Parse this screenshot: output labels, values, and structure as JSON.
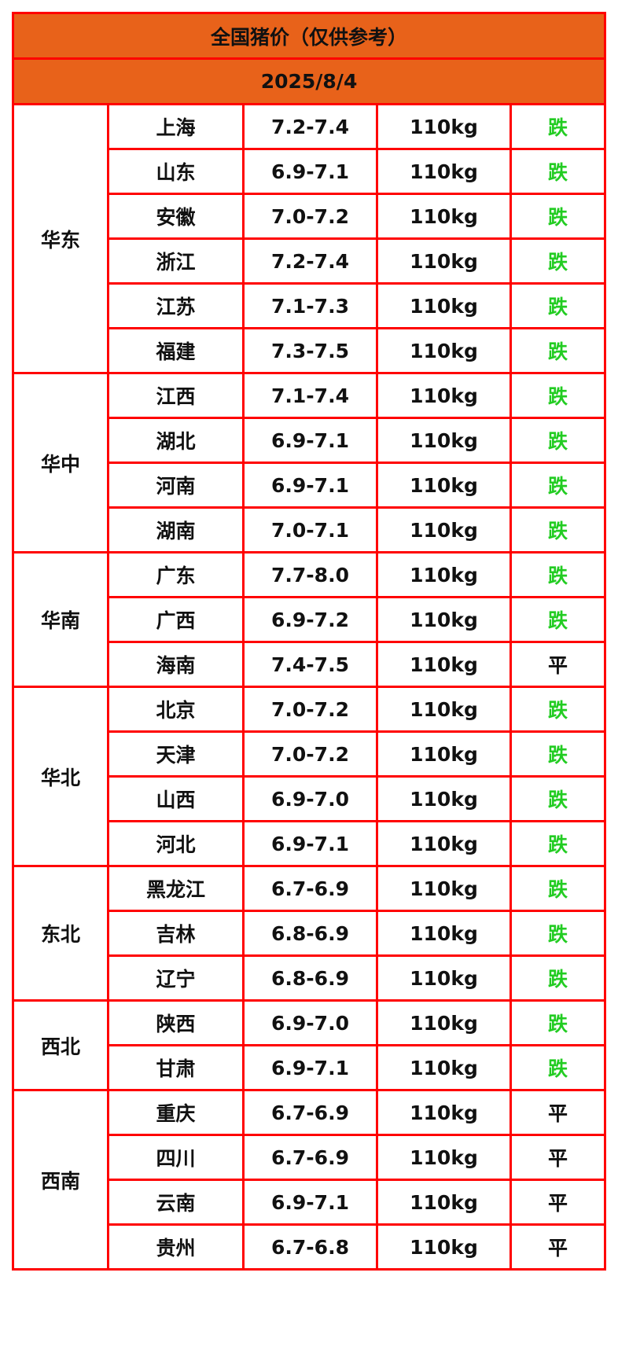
{
  "title": "全国猪价（仅供参考）",
  "date": "2025/8/4",
  "colors": {
    "header_bg": "#e8621a",
    "border": "#ff0000",
    "down": "#22cc22",
    "flat": "#111111"
  },
  "regions": [
    {
      "name": "华东",
      "rows": [
        {
          "province": "上海",
          "price": "7.2-7.4",
          "weight": "110kg",
          "trend": "跌"
        },
        {
          "province": "山东",
          "price": "6.9-7.1",
          "weight": "110kg",
          "trend": "跌"
        },
        {
          "province": "安徽",
          "price": "7.0-7.2",
          "weight": "110kg",
          "trend": "跌"
        },
        {
          "province": "浙江",
          "price": "7.2-7.4",
          "weight": "110kg",
          "trend": "跌"
        },
        {
          "province": "江苏",
          "price": "7.1-7.3",
          "weight": "110kg",
          "trend": "跌"
        },
        {
          "province": "福建",
          "price": "7.3-7.5",
          "weight": "110kg",
          "trend": "跌"
        }
      ]
    },
    {
      "name": "华中",
      "rows": [
        {
          "province": "江西",
          "price": "7.1-7.4",
          "weight": "110kg",
          "trend": "跌"
        },
        {
          "province": "湖北",
          "price": "6.9-7.1",
          "weight": "110kg",
          "trend": "跌"
        },
        {
          "province": "河南",
          "price": "6.9-7.1",
          "weight": "110kg",
          "trend": "跌"
        },
        {
          "province": "湖南",
          "price": "7.0-7.1",
          "weight": "110kg",
          "trend": "跌"
        }
      ]
    },
    {
      "name": "华南",
      "rows": [
        {
          "province": "广东",
          "price": "7.7-8.0",
          "weight": "110kg",
          "trend": "跌"
        },
        {
          "province": "广西",
          "price": "6.9-7.2",
          "weight": "110kg",
          "trend": "跌"
        },
        {
          "province": "海南",
          "price": "7.4-7.5",
          "weight": "110kg",
          "trend": "平"
        }
      ]
    },
    {
      "name": "华北",
      "rows": [
        {
          "province": "北京",
          "price": "7.0-7.2",
          "weight": "110kg",
          "trend": "跌"
        },
        {
          "province": "天津",
          "price": "7.0-7.2",
          "weight": "110kg",
          "trend": "跌"
        },
        {
          "province": "山西",
          "price": "6.9-7.0",
          "weight": "110kg",
          "trend": "跌"
        },
        {
          "province": "河北",
          "price": "6.9-7.1",
          "weight": "110kg",
          "trend": "跌"
        }
      ]
    },
    {
      "name": "东北",
      "rows": [
        {
          "province": "黑龙江",
          "price": "6.7-6.9",
          "weight": "110kg",
          "trend": "跌"
        },
        {
          "province": "吉林",
          "price": "6.8-6.9",
          "weight": "110kg",
          "trend": "跌"
        },
        {
          "province": "辽宁",
          "price": "6.8-6.9",
          "weight": "110kg",
          "trend": "跌"
        }
      ]
    },
    {
      "name": "西北",
      "rows": [
        {
          "province": "陕西",
          "price": "6.9-7.0",
          "weight": "110kg",
          "trend": "跌"
        },
        {
          "province": "甘肃",
          "price": "6.9-7.1",
          "weight": "110kg",
          "trend": "跌"
        }
      ]
    },
    {
      "name": "西南",
      "rows": [
        {
          "province": "重庆",
          "price": "6.7-6.9",
          "weight": "110kg",
          "trend": "平"
        },
        {
          "province": "四川",
          "price": "6.7-6.9",
          "weight": "110kg",
          "trend": "平"
        },
        {
          "province": "云南",
          "price": "6.9-7.1",
          "weight": "110kg",
          "trend": "平"
        },
        {
          "province": "贵州",
          "price": "6.7-6.8",
          "weight": "110kg",
          "trend": "平"
        }
      ]
    }
  ]
}
